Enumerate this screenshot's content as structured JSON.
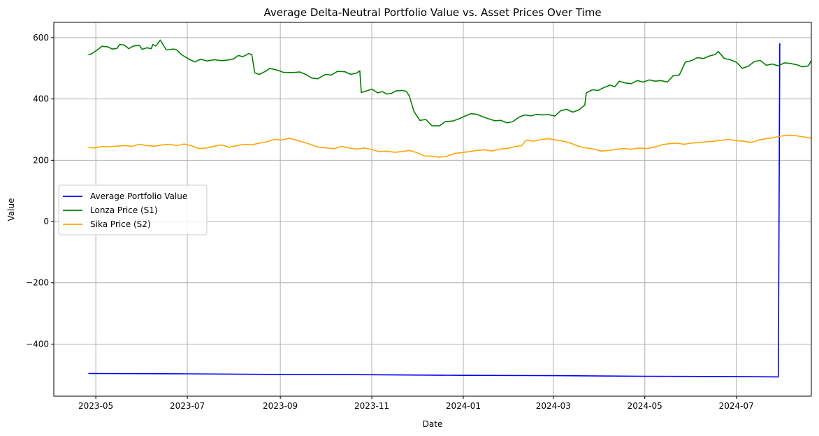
{
  "chart_data": {
    "type": "line",
    "title": "Average Delta-Neutral Portfolio Value vs. Asset Prices Over Time",
    "xlabel": "Date",
    "ylabel": "Value",
    "xlim": [
      "2023-04-03",
      "2024-08-20"
    ],
    "ylim": [
      -570,
      650
    ],
    "x_ticks": [
      "2023-05",
      "2023-07",
      "2023-09",
      "2023-11",
      "2024-01",
      "2024-03",
      "2024-05",
      "2024-07"
    ],
    "x_tick_dates": [
      "2023-05-01",
      "2023-07-01",
      "2023-09-01",
      "2023-11-01",
      "2024-01-01",
      "2024-03-01",
      "2024-05-01",
      "2024-07-01"
    ],
    "y_ticks": [
      600,
      400,
      200,
      0,
      -200,
      -400
    ],
    "y_tick_labels": [
      "600",
      "400",
      "200",
      "0",
      "−200",
      "−400"
    ],
    "grid": true,
    "legend_position": "center-left",
    "series": [
      {
        "name": "Average Portfolio Value",
        "color": "#0000ff",
        "points": [
          [
            "2023-04-26",
            -496
          ],
          [
            "2023-07-01",
            -497
          ],
          [
            "2023-09-01",
            -499
          ],
          [
            "2023-11-01",
            -500
          ],
          [
            "2024-01-01",
            -502
          ],
          [
            "2024-03-01",
            -503
          ],
          [
            "2024-05-01",
            -505
          ],
          [
            "2024-07-01",
            -506
          ],
          [
            "2024-07-29",
            -507
          ],
          [
            "2024-07-30",
            582
          ]
        ]
      },
      {
        "name": "Lonza Price (S1)",
        "color": "#008000",
        "points": [
          [
            "2023-04-26",
            545
          ],
          [
            "2023-04-28",
            547
          ],
          [
            "2023-05-02",
            560
          ],
          [
            "2023-05-05",
            572
          ],
          [
            "2023-05-09",
            570
          ],
          [
            "2023-05-12",
            563
          ],
          [
            "2023-05-15",
            565
          ],
          [
            "2023-05-17",
            578
          ],
          [
            "2023-05-20",
            576
          ],
          [
            "2023-05-23",
            564
          ],
          [
            "2023-05-26",
            573
          ],
          [
            "2023-05-30",
            575
          ],
          [
            "2023-06-01",
            562
          ],
          [
            "2023-06-04",
            567
          ],
          [
            "2023-06-07",
            564
          ],
          [
            "2023-06-08",
            578
          ],
          [
            "2023-06-10",
            573
          ],
          [
            "2023-06-13",
            592
          ],
          [
            "2023-06-17",
            560
          ],
          [
            "2023-06-22",
            563
          ],
          [
            "2023-06-24",
            560
          ],
          [
            "2023-06-27",
            545
          ],
          [
            "2023-07-02",
            530
          ],
          [
            "2023-07-06",
            521
          ],
          [
            "2023-07-10",
            530
          ],
          [
            "2023-07-14",
            524
          ],
          [
            "2023-07-19",
            528
          ],
          [
            "2023-07-24",
            525
          ],
          [
            "2023-07-28",
            527
          ],
          [
            "2023-08-01",
            531
          ],
          [
            "2023-08-04",
            542
          ],
          [
            "2023-08-07",
            538
          ],
          [
            "2023-08-11",
            548
          ],
          [
            "2023-08-13",
            545
          ],
          [
            "2023-08-15",
            485
          ],
          [
            "2023-08-18",
            480
          ],
          [
            "2023-08-22",
            490
          ],
          [
            "2023-08-25",
            500
          ],
          [
            "2023-08-30",
            494
          ],
          [
            "2023-09-03",
            487
          ],
          [
            "2023-09-09",
            486
          ],
          [
            "2023-09-14",
            488
          ],
          [
            "2023-09-18",
            480
          ],
          [
            "2023-09-22",
            468
          ],
          [
            "2023-09-26",
            466
          ],
          [
            "2023-10-01",
            480
          ],
          [
            "2023-10-05",
            478
          ],
          [
            "2023-10-09",
            490
          ],
          [
            "2023-10-14",
            489
          ],
          [
            "2023-10-18",
            480
          ],
          [
            "2023-10-22",
            485
          ],
          [
            "2023-10-24",
            492
          ],
          [
            "2023-10-25",
            421
          ],
          [
            "2023-10-29",
            427
          ],
          [
            "2023-11-01",
            432
          ],
          [
            "2023-11-05",
            420
          ],
          [
            "2023-11-08",
            424
          ],
          [
            "2023-11-11",
            416
          ],
          [
            "2023-11-14",
            418
          ],
          [
            "2023-11-17",
            426
          ],
          [
            "2023-11-21",
            428
          ],
          [
            "2023-11-24",
            425
          ],
          [
            "2023-11-26",
            410
          ],
          [
            "2023-11-29",
            360
          ],
          [
            "2023-12-03",
            330
          ],
          [
            "2023-12-07",
            333
          ],
          [
            "2023-12-11",
            313
          ],
          [
            "2023-12-16",
            312
          ],
          [
            "2023-12-20",
            326
          ],
          [
            "2023-12-25",
            328
          ],
          [
            "2023-12-29",
            335
          ],
          [
            "2024-01-02",
            344
          ],
          [
            "2024-01-06",
            352
          ],
          [
            "2024-01-10",
            350
          ],
          [
            "2024-01-14",
            342
          ],
          [
            "2024-01-18",
            335
          ],
          [
            "2024-01-22",
            329
          ],
          [
            "2024-01-26",
            330
          ],
          [
            "2024-01-30",
            322
          ],
          [
            "2024-02-03",
            326
          ],
          [
            "2024-02-07",
            340
          ],
          [
            "2024-02-11",
            348
          ],
          [
            "2024-02-15",
            345
          ],
          [
            "2024-02-19",
            350
          ],
          [
            "2024-02-23",
            348
          ],
          [
            "2024-02-27",
            349
          ],
          [
            "2024-03-02",
            344
          ],
          [
            "2024-03-06",
            362
          ],
          [
            "2024-03-10",
            366
          ],
          [
            "2024-03-14",
            357
          ],
          [
            "2024-03-18",
            364
          ],
          [
            "2024-03-22",
            380
          ],
          [
            "2024-03-23",
            420
          ],
          [
            "2024-03-27",
            430
          ],
          [
            "2024-03-31",
            428
          ],
          [
            "2024-04-04",
            438
          ],
          [
            "2024-04-08",
            445
          ],
          [
            "2024-04-11",
            440
          ],
          [
            "2024-04-14",
            458
          ],
          [
            "2024-04-18",
            452
          ],
          [
            "2024-04-22",
            450
          ],
          [
            "2024-04-26",
            460
          ],
          [
            "2024-04-30",
            455
          ],
          [
            "2024-05-04",
            462
          ],
          [
            "2024-05-08",
            458
          ],
          [
            "2024-05-12",
            460
          ],
          [
            "2024-05-16",
            455
          ],
          [
            "2024-05-20",
            476
          ],
          [
            "2024-05-24",
            478
          ],
          [
            "2024-05-28",
            520
          ],
          [
            "2024-06-01",
            525
          ],
          [
            "2024-06-05",
            535
          ],
          [
            "2024-06-09",
            532
          ],
          [
            "2024-06-13",
            540
          ],
          [
            "2024-06-17",
            545
          ],
          [
            "2024-06-19",
            555
          ],
          [
            "2024-06-23",
            532
          ],
          [
            "2024-06-27",
            528
          ],
          [
            "2024-07-01",
            520
          ],
          [
            "2024-07-05",
            500
          ],
          [
            "2024-07-09",
            507
          ],
          [
            "2024-07-13",
            522
          ],
          [
            "2024-07-17",
            526
          ],
          [
            "2024-07-21",
            510
          ],
          [
            "2024-07-25",
            514
          ],
          [
            "2024-07-29",
            508
          ],
          [
            "2024-08-02",
            518
          ],
          [
            "2024-08-06",
            516
          ],
          [
            "2024-08-10",
            512
          ],
          [
            "2024-08-14",
            505
          ],
          [
            "2024-08-18",
            508
          ],
          [
            "2024-08-20",
            525
          ]
        ]
      },
      {
        "name": "Sika Price (S2)",
        "color": "#ffa500",
        "points": [
          [
            "2023-04-26",
            242
          ],
          [
            "2023-04-30",
            240
          ],
          [
            "2023-05-05",
            245
          ],
          [
            "2023-05-10",
            244
          ],
          [
            "2023-05-15",
            246
          ],
          [
            "2023-05-20",
            248
          ],
          [
            "2023-05-25",
            245
          ],
          [
            "2023-05-30",
            252
          ],
          [
            "2023-06-04",
            248
          ],
          [
            "2023-06-09",
            246
          ],
          [
            "2023-06-14",
            250
          ],
          [
            "2023-06-19",
            252
          ],
          [
            "2023-06-24",
            248
          ],
          [
            "2023-06-29",
            253
          ],
          [
            "2023-07-04",
            247
          ],
          [
            "2023-07-09",
            238
          ],
          [
            "2023-07-14",
            240
          ],
          [
            "2023-07-19",
            246
          ],
          [
            "2023-07-24",
            250
          ],
          [
            "2023-07-29",
            242
          ],
          [
            "2023-08-03",
            248
          ],
          [
            "2023-08-08",
            252
          ],
          [
            "2023-08-13",
            250
          ],
          [
            "2023-08-18",
            256
          ],
          [
            "2023-08-23",
            260
          ],
          [
            "2023-08-28",
            268
          ],
          [
            "2023-09-02",
            266
          ],
          [
            "2023-09-07",
            272
          ],
          [
            "2023-09-12",
            265
          ],
          [
            "2023-09-17",
            258
          ],
          [
            "2023-09-22",
            250
          ],
          [
            "2023-09-27",
            242
          ],
          [
            "2023-10-02",
            240
          ],
          [
            "2023-10-07",
            238
          ],
          [
            "2023-10-12",
            245
          ],
          [
            "2023-10-17",
            240
          ],
          [
            "2023-10-22",
            236
          ],
          [
            "2023-10-27",
            240
          ],
          [
            "2023-11-01",
            235
          ],
          [
            "2023-11-06",
            228
          ],
          [
            "2023-11-11",
            230
          ],
          [
            "2023-11-16",
            226
          ],
          [
            "2023-11-21",
            228
          ],
          [
            "2023-11-26",
            232
          ],
          [
            "2023-12-01",
            225
          ],
          [
            "2023-12-06",
            214
          ],
          [
            "2023-12-11",
            213
          ],
          [
            "2023-12-16",
            210
          ],
          [
            "2023-12-21",
            213
          ],
          [
            "2023-12-26",
            222
          ],
          [
            "2023-12-31",
            225
          ],
          [
            "2024-01-05",
            228
          ],
          [
            "2024-01-10",
            232
          ],
          [
            "2024-01-15",
            234
          ],
          [
            "2024-01-20",
            230
          ],
          [
            "2024-01-25",
            236
          ],
          [
            "2024-01-30",
            238
          ],
          [
            "2024-02-04",
            244
          ],
          [
            "2024-02-09",
            248
          ],
          [
            "2024-02-12",
            266
          ],
          [
            "2024-02-17",
            262
          ],
          [
            "2024-02-22",
            268
          ],
          [
            "2024-02-27",
            270
          ],
          [
            "2024-03-03",
            266
          ],
          [
            "2024-03-08",
            262
          ],
          [
            "2024-03-13",
            255
          ],
          [
            "2024-03-18",
            245
          ],
          [
            "2024-03-23",
            240
          ],
          [
            "2024-03-28",
            236
          ],
          [
            "2024-04-02",
            230
          ],
          [
            "2024-04-07",
            232
          ],
          [
            "2024-04-12",
            236
          ],
          [
            "2024-04-17",
            238
          ],
          [
            "2024-04-22",
            236
          ],
          [
            "2024-04-27",
            240
          ],
          [
            "2024-05-02",
            238
          ],
          [
            "2024-05-07",
            242
          ],
          [
            "2024-05-12",
            250
          ],
          [
            "2024-05-17",
            254
          ],
          [
            "2024-05-22",
            256
          ],
          [
            "2024-05-27",
            252
          ],
          [
            "2024-06-01",
            256
          ],
          [
            "2024-06-06",
            258
          ],
          [
            "2024-06-11",
            260
          ],
          [
            "2024-06-16",
            262
          ],
          [
            "2024-06-21",
            265
          ],
          [
            "2024-06-26",
            268
          ],
          [
            "2024-07-01",
            264
          ],
          [
            "2024-07-06",
            262
          ],
          [
            "2024-07-11",
            258
          ],
          [
            "2024-07-16",
            266
          ],
          [
            "2024-07-21",
            270
          ],
          [
            "2024-07-26",
            274
          ],
          [
            "2024-07-31",
            279
          ],
          [
            "2024-08-05",
            282
          ],
          [
            "2024-08-10",
            280
          ],
          [
            "2024-08-15",
            276
          ],
          [
            "2024-08-20",
            272
          ]
        ]
      }
    ]
  }
}
